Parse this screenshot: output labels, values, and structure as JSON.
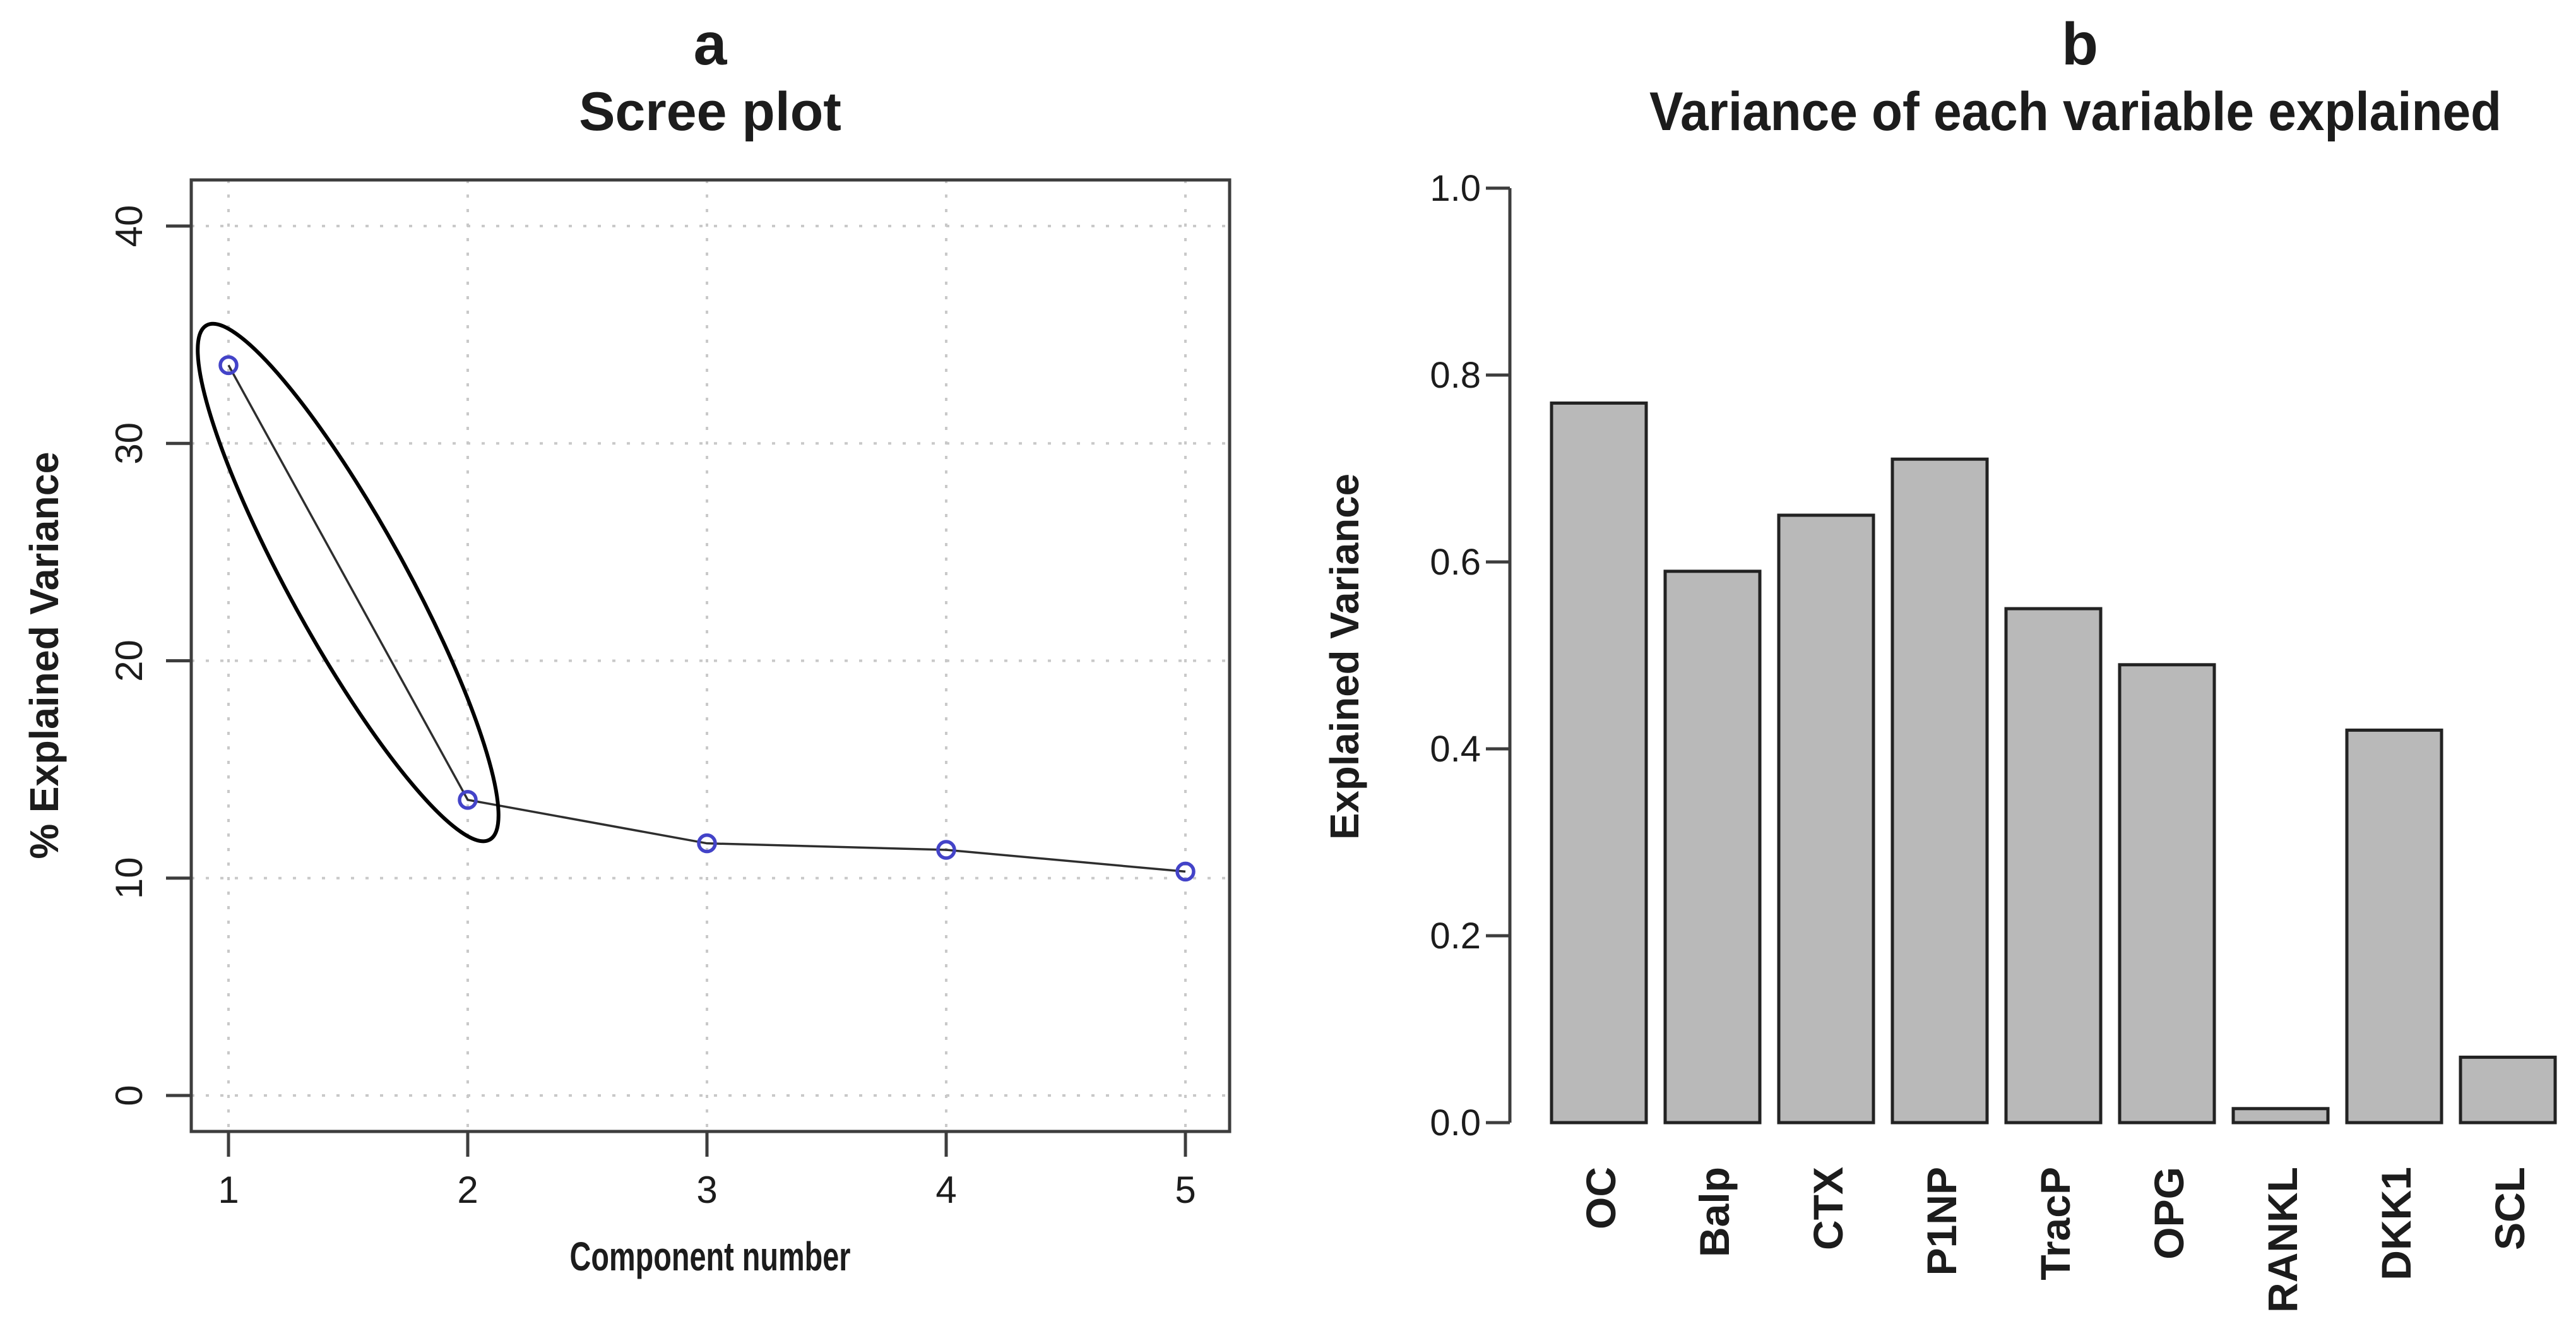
{
  "figure": {
    "background": "#ffffff",
    "description": "Two-panel PCA figure: scree plot and per-variable explained variance bar chart"
  },
  "colors": {
    "axis": "#3d3d3d",
    "grid": "#c9c9c9",
    "text": "#1c1c1c",
    "line": "#2e2e2e",
    "marker_stroke": "#4343c8",
    "ellipse": "#000000",
    "bar_fill": "#b9b9b9",
    "bar_border": "#222222"
  },
  "chart_data": [
    {
      "panel": "a",
      "type": "line",
      "title": "Scree plot",
      "xlabel": "Component number",
      "ylabel": "% Explained Variance",
      "x": [
        1,
        2,
        3,
        4,
        5
      ],
      "y": [
        33.6,
        13.6,
        11.6,
        11.3,
        10.3
      ],
      "x_tick_labels": [
        "1",
        "2",
        "3",
        "4",
        "5"
      ],
      "y_ticks": [
        0,
        10,
        20,
        30,
        40
      ],
      "y_tick_labels": [
        "0",
        "10",
        "20",
        "30",
        "40"
      ],
      "xlim": [
        0.84,
        5.19
      ],
      "ylim": [
        -1.66,
        42.1
      ],
      "grid": true,
      "grid_style": "dotted",
      "marker": "open-circle",
      "legend": "none",
      "annotations": [
        {
          "type": "ellipse",
          "around_x": [
            1,
            2
          ],
          "note": "highlights the first two components"
        }
      ]
    },
    {
      "panel": "b",
      "type": "bar",
      "title": "Variance of each variable explained",
      "xlabel": "",
      "ylabel": "Explained Variance",
      "categories": [
        "OC",
        "Balp",
        "CTX",
        "P1NP",
        "TracP",
        "OPG",
        "RANKL",
        "DKK1",
        "SCL"
      ],
      "values": [
        0.77,
        0.59,
        0.65,
        0.71,
        0.55,
        0.49,
        0.015,
        0.42,
        0.07
      ],
      "y_ticks": [
        0,
        0.2,
        0.4,
        0.6,
        0.8,
        1.0
      ],
      "y_tick_labels": [
        "0.0",
        "0.2",
        "0.4",
        "0.6",
        "0.8",
        "1.0"
      ],
      "ylim": [
        0,
        1.0
      ],
      "grid": false,
      "legend": "none",
      "category_label_rotation": "90deg counter-clockwise, reading bottom to top"
    }
  ]
}
